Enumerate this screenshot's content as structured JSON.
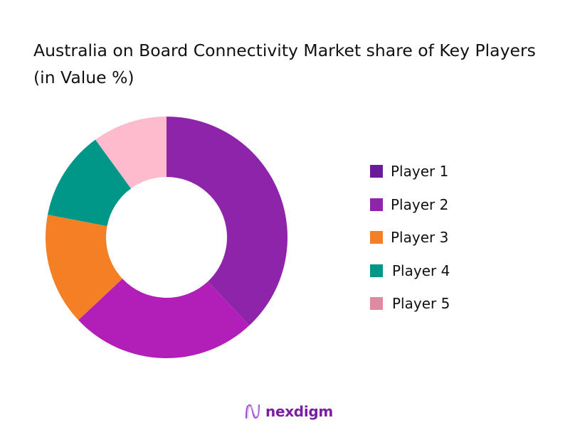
{
  "title": "Australia on Board Connectivity Market share of Key Players (in Value %)",
  "chart_data": {
    "type": "pie",
    "subtype": "donut",
    "title": "Australia on Board Connectivity Market share of Key Players (in Value %)",
    "categories": [
      "Player 1",
      "Player 2",
      "Player 3",
      "Player 4",
      "Player 5"
    ],
    "values": [
      38,
      25,
      15,
      12,
      10
    ],
    "colors": [
      "#8e24aa",
      "#b11fb8",
      "#f47f24",
      "#009688",
      "#ffbbce"
    ],
    "legend_colors": [
      "#6a1b9a",
      "#8e24aa",
      "#f47f24",
      "#009688",
      "#e08aa0"
    ],
    "start_angle_deg": 0,
    "direction": "clockwise",
    "legend_position": "right",
    "data_labels": false
  },
  "legend": [
    {
      "label": "Player 1",
      "color": "#6a1b9a"
    },
    {
      "label": "Player 2",
      "color": "#8e24aa"
    },
    {
      "label": "Player 3",
      "color": "#f47f24"
    },
    {
      "label": "Player 4",
      "color": "#009688"
    },
    {
      "label": "Player 5",
      "color": "#e08aa0"
    }
  ],
  "logo": {
    "text": "nexdigm",
    "color": "#7b1fa2"
  }
}
